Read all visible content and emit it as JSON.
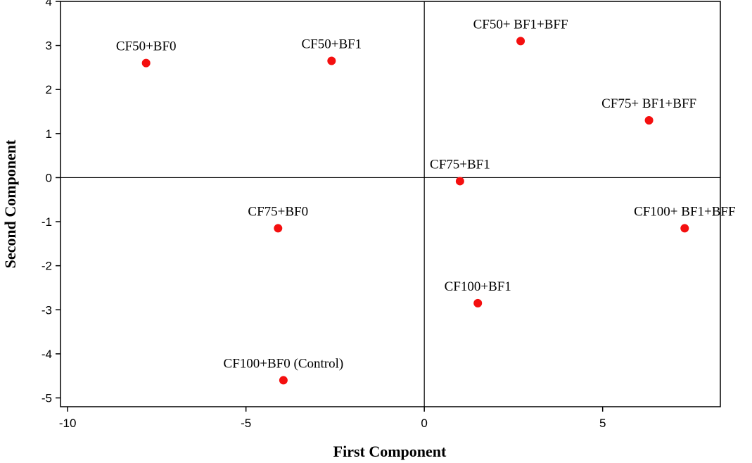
{
  "chart_data": {
    "type": "scatter",
    "xlabel": "First Component",
    "ylabel": "Second Component",
    "xlim": [
      -10.2,
      8.3
    ],
    "ylim": [
      -5.2,
      4.0
    ],
    "x_ticks": [
      -10,
      -5,
      0,
      5
    ],
    "y_ticks": [
      -5,
      -4,
      -3,
      -2,
      -1,
      0,
      1,
      2,
      3,
      4
    ],
    "reference_lines": {
      "x": 0,
      "y": 0
    },
    "grid": false,
    "marker_color": "#f40f0f",
    "points": [
      {
        "label": "CF50+BF0",
        "x": -7.8,
        "y": 2.6
      },
      {
        "label": "CF50+BF1",
        "x": -2.6,
        "y": 2.65
      },
      {
        "label": "CF50+ BF1+BFF",
        "x": 2.7,
        "y": 3.1
      },
      {
        "label": "CF75+ BF1+BFF",
        "x": 6.3,
        "y": 1.3
      },
      {
        "label": "CF75+BF1",
        "x": 1.0,
        "y": -0.08
      },
      {
        "label": "CF75+BF0",
        "x": -4.1,
        "y": -1.15
      },
      {
        "label": "CF100+ BF1+BFF",
        "x": 7.3,
        "y": -1.15
      },
      {
        "label": "CF100+BF1",
        "x": 1.5,
        "y": -2.85
      },
      {
        "label": "CF100+BF0 (Control)",
        "x": -3.95,
        "y": -4.6
      }
    ]
  }
}
